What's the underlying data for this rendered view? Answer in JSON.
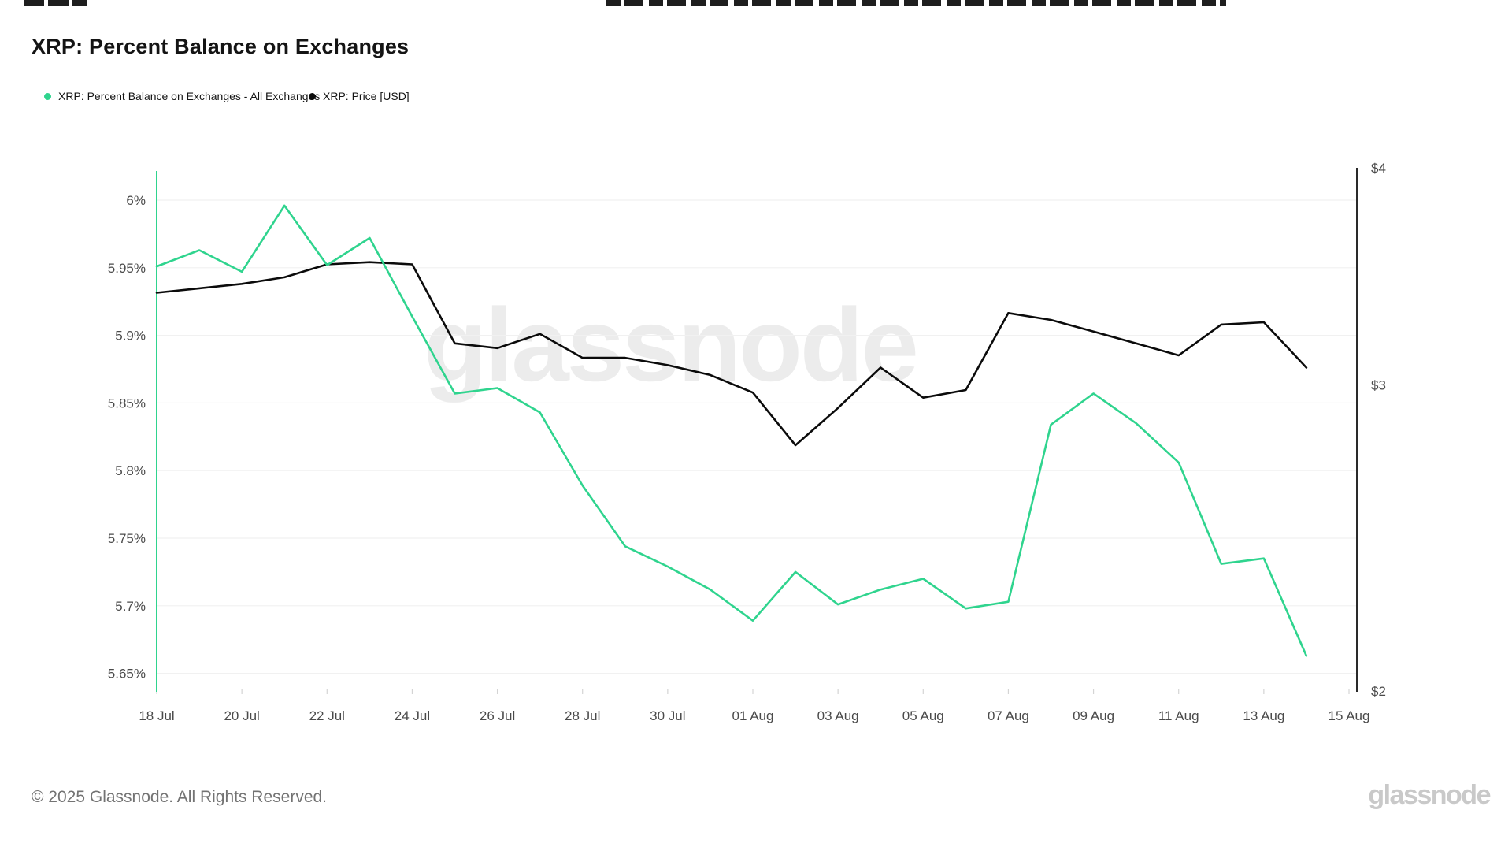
{
  "page": {
    "title": "XRP: Percent Balance on Exchanges"
  },
  "legend": {
    "items": [
      {
        "label": "XRP: Percent Balance on Exchanges - All Exchanges",
        "color": "#2fd48e"
      },
      {
        "label": "XRP: Price [USD]",
        "color": "#0b0b0b"
      }
    ]
  },
  "watermark": "glassnode",
  "footer": {
    "copyright": "© 2025 Glassnode. All Rights Reserved.",
    "brand": "glassnode"
  },
  "chart_data": {
    "type": "line",
    "title": "XRP: Percent Balance on Exchanges",
    "x": [
      "18 Jul",
      "19 Jul",
      "20 Jul",
      "21 Jul",
      "22 Jul",
      "23 Jul",
      "24 Jul",
      "25 Jul",
      "26 Jul",
      "27 Jul",
      "28 Jul",
      "29 Jul",
      "30 Jul",
      "31 Jul",
      "01 Aug",
      "02 Aug",
      "03 Aug",
      "04 Aug",
      "05 Aug",
      "06 Aug",
      "07 Aug",
      "08 Aug",
      "09 Aug",
      "10 Aug",
      "11 Aug",
      "12 Aug",
      "13 Aug",
      "14 Aug"
    ],
    "series": [
      {
        "name": "XRP: Percent Balance on Exchanges - All Exchanges",
        "axis": "left",
        "unit": "%",
        "color": "#2fd48e",
        "values": [
          5.951,
          5.963,
          5.947,
          5.996,
          5.952,
          5.972,
          5.914,
          5.857,
          5.861,
          5.843,
          5.789,
          5.744,
          5.729,
          5.712,
          5.689,
          5.725,
          5.701,
          5.712,
          5.72,
          5.698,
          5.703,
          5.834,
          5.857,
          5.835,
          5.806,
          5.731,
          5.735,
          5.663
        ]
      },
      {
        "name": "XRP: Price [USD]",
        "axis": "right",
        "unit": "USD",
        "color": "#0b0b0b",
        "values": [
          3.39,
          3.41,
          3.43,
          3.46,
          3.52,
          3.53,
          3.52,
          3.17,
          3.15,
          3.21,
          3.11,
          3.11,
          3.08,
          3.04,
          2.97,
          2.77,
          2.91,
          3.07,
          2.95,
          2.98,
          3.3,
          3.27,
          3.22,
          3.17,
          3.12,
          3.25,
          3.26,
          3.07
        ]
      }
    ],
    "left_axis": {
      "scale": "linear",
      "range": [
        5.64,
        6.02
      ],
      "ticks": [
        {
          "label": "6%",
          "value": 6.0
        },
        {
          "label": "5.95%",
          "value": 5.95
        },
        {
          "label": "5.9%",
          "value": 5.9
        },
        {
          "label": "5.85%",
          "value": 5.85
        },
        {
          "label": "5.8%",
          "value": 5.8
        },
        {
          "label": "5.75%",
          "value": 5.75
        },
        {
          "label": "5.7%",
          "value": 5.7
        },
        {
          "label": "5.65%",
          "value": 5.65
        }
      ]
    },
    "right_axis": {
      "scale": "log",
      "range": [
        2,
        4
      ],
      "ticks": [
        {
          "label": "$4",
          "value": 4
        },
        {
          "label": "$3",
          "value": 3
        },
        {
          "label": "$2",
          "value": 2
        }
      ]
    },
    "x_axis": {
      "tick_labels": [
        "18 Jul",
        "20 Jul",
        "22 Jul",
        "24 Jul",
        "26 Jul",
        "28 Jul",
        "30 Jul",
        "01 Aug",
        "03 Aug",
        "05 Aug",
        "07 Aug",
        "09 Aug",
        "11 Aug",
        "13 Aug",
        "15 Aug"
      ]
    },
    "grid": true,
    "legend_position": "top-left"
  }
}
